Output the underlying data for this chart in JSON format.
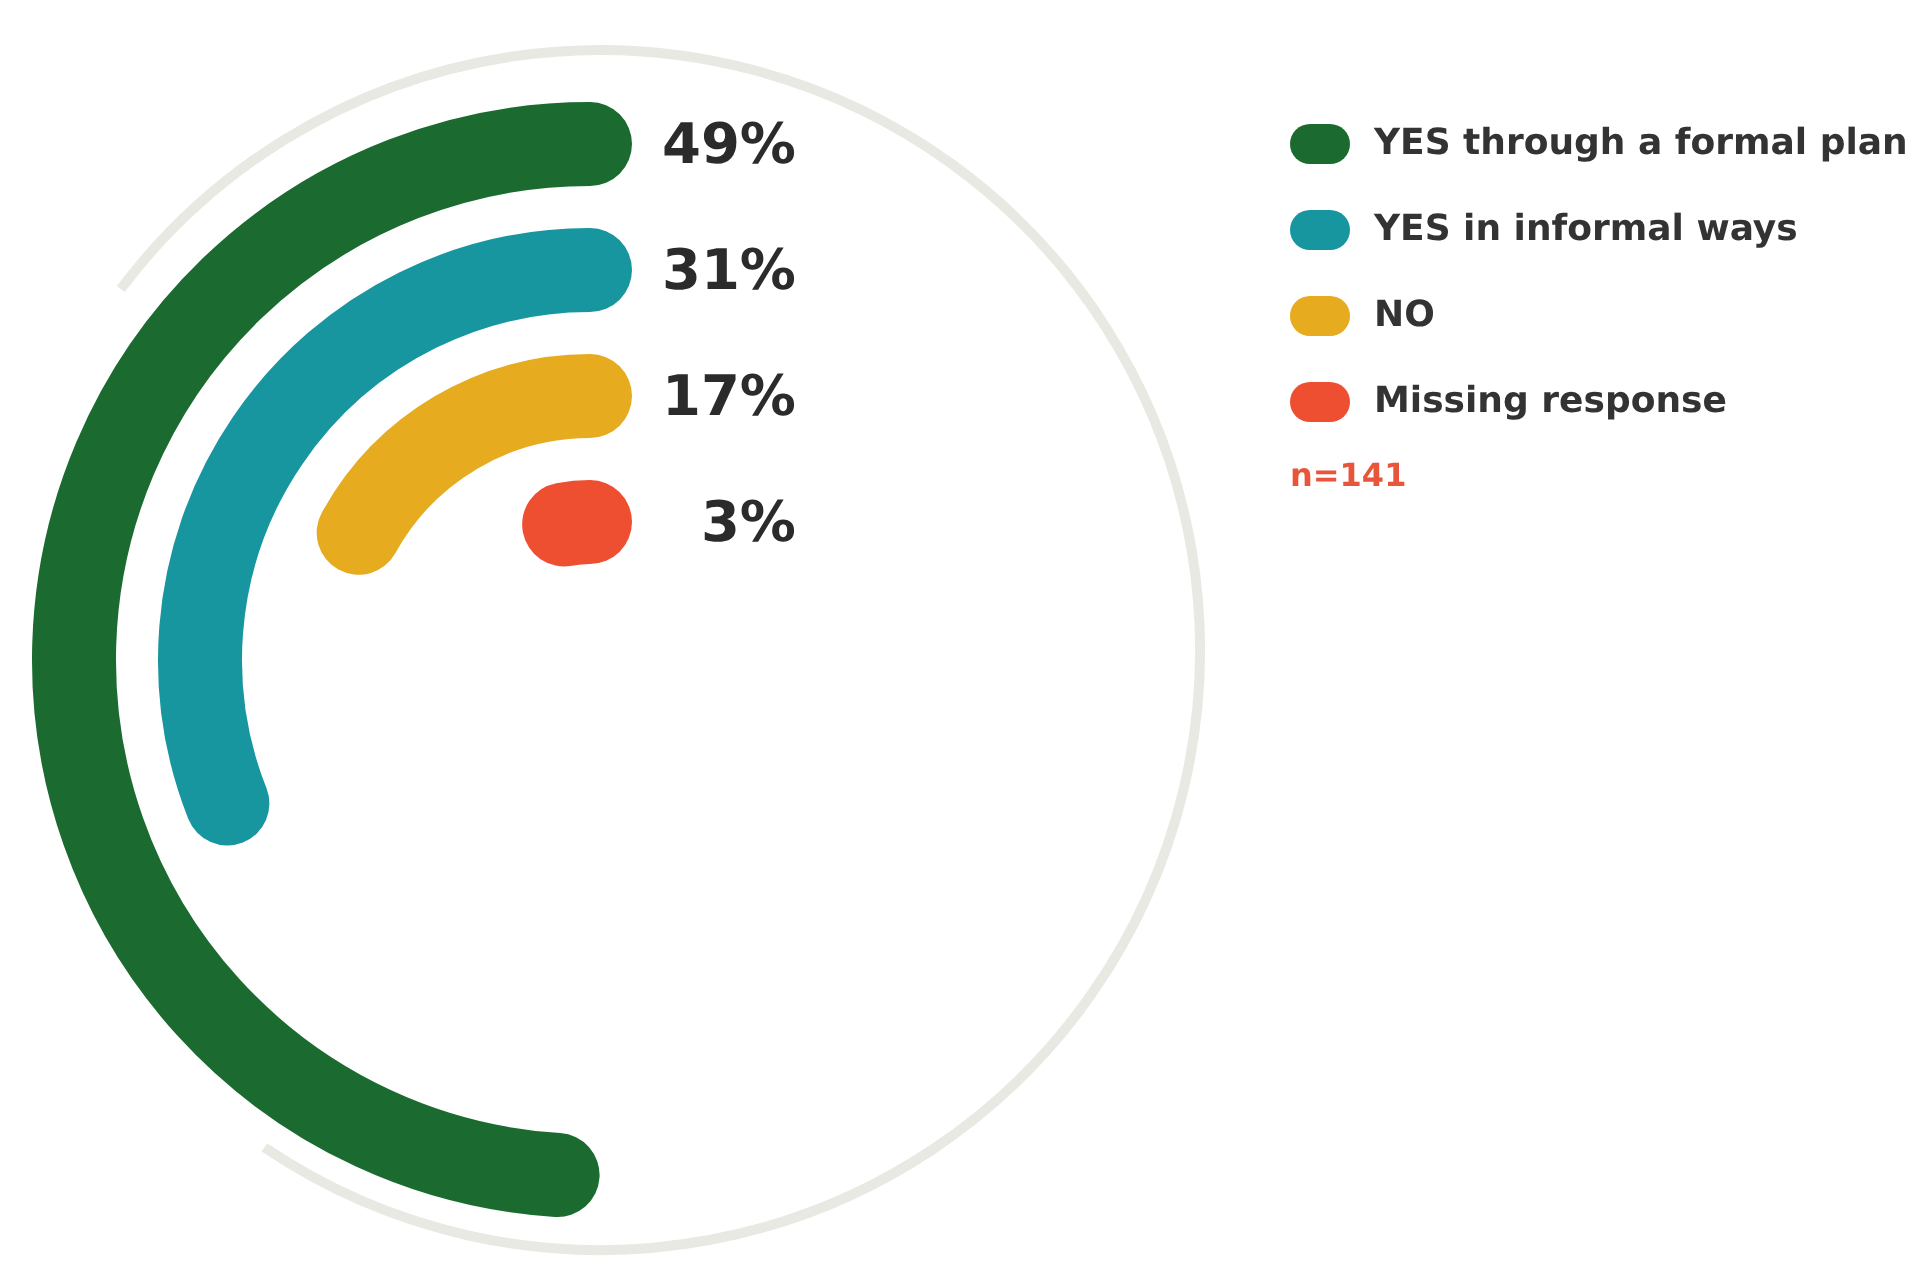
{
  "chart_data": {
    "type": "other",
    "categories": [
      "YES through a formal plan",
      "YES in informal ways",
      "NO",
      "Missing response"
    ],
    "values": [
      49,
      31,
      17,
      3
    ],
    "value_labels": [
      "49%",
      "31%",
      "17%",
      "3%"
    ],
    "colors": [
      "#1b6b30",
      "#1896a0",
      "#e6ab1e",
      "#ee4f30"
    ],
    "annotations": [
      "n=141"
    ]
  }
}
